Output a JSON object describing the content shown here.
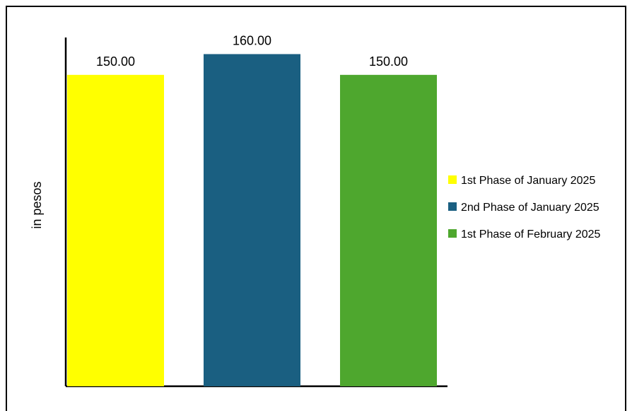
{
  "chart_data": {
    "type": "bar",
    "title": "",
    "xlabel": "",
    "ylabel": "in pesos",
    "ylim": [
      0,
      168
    ],
    "grid": false,
    "legend_position": "right",
    "series": [
      {
        "name": "1st Phase of January 2025",
        "value": 150,
        "label": "150.00",
        "color": "#FFFF00"
      },
      {
        "name": "2nd Phase of January 2025",
        "value": 160,
        "label": "160.00",
        "color": "#1A5F81"
      },
      {
        "name": "1st Phase of February 2025",
        "value": 150,
        "label": "150.00",
        "color": "#4EA72E"
      }
    ]
  }
}
